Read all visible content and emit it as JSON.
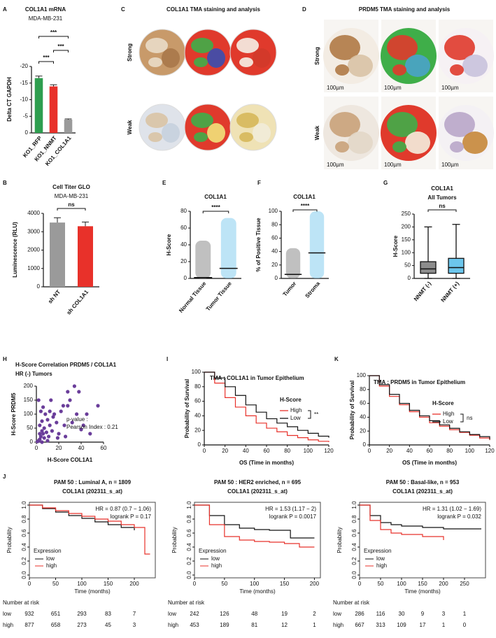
{
  "images": [
    {
      "panel": "C",
      "title": "COL1A1 TMA staining and analysis",
      "rows": [
        "Strong",
        "Weak"
      ]
    },
    {
      "panel": "D",
      "title": "PRDM5 TMA staining and analysis",
      "rows": [
        "Strong",
        "Weak"
      ],
      "scale_label": "100µm"
    }
  ],
  "chart_data": [
    {
      "panel": "A",
      "type": "bar",
      "title": "COL1A1 mRNA",
      "subtitle": "MDA-MB-231",
      "ylabel": "Delta CT GAPDH",
      "categories": [
        "KO1_RFP",
        "KO1_NNMT",
        "KO1_COL1A1"
      ],
      "values": [
        -16.5,
        -14,
        -4
      ],
      "errors": [
        0.6,
        0.5,
        0.2
      ],
      "colors": [
        "#2e9e4f",
        "#e8312a",
        "#9a9a9a"
      ],
      "ylim": [
        0,
        -20
      ],
      "yticks": [
        0,
        -5,
        -10,
        -15,
        -20
      ],
      "annotations": [
        "***",
        "***",
        "***"
      ]
    },
    {
      "panel": "B",
      "type": "bar",
      "title": "Cell Titer GLO",
      "subtitle": "MDA-MB-231",
      "ylabel": "Luminescence (RLU)",
      "categories": [
        "sh NT",
        "sh COL1A1"
      ],
      "values": [
        3500,
        3300
      ],
      "errors": [
        260,
        230
      ],
      "colors": [
        "#9a9a9a",
        "#e8312a"
      ],
      "ylim": [
        0,
        4000
      ],
      "yticks": [
        0,
        1000,
        2000,
        3000,
        4000
      ],
      "annotations": [
        "ns"
      ]
    },
    {
      "panel": "E",
      "type": "strip",
      "title": "COL1A1",
      "ylabel": "H-Score",
      "categories": [
        "Normal Tissue",
        "Tumor Tissue"
      ],
      "values": [
        1,
        12
      ],
      "ranges": [
        [
          0,
          45
        ],
        [
          0,
          72
        ]
      ],
      "colors": [
        "#8c8c8c",
        "#87cdee"
      ],
      "ylim": [
        0,
        80
      ],
      "yticks": [
        0,
        20,
        40,
        60,
        80
      ],
      "annotations": [
        "****"
      ]
    },
    {
      "panel": "F",
      "type": "strip",
      "title": "COL1A1",
      "ylabel": "% of Positive Tissue",
      "categories": [
        "Tumor",
        "Stroma"
      ],
      "values": [
        6,
        38
      ],
      "ranges": [
        [
          0,
          45
        ],
        [
          0,
          100
        ]
      ],
      "colors": [
        "#8c8c8c",
        "#87cdee"
      ],
      "ylim": [
        0,
        100
      ],
      "yticks": [
        0,
        20,
        40,
        60,
        80,
        100
      ],
      "annotations": [
        "****"
      ]
    },
    {
      "panel": "G",
      "type": "box",
      "title": "COL1A1",
      "subtitle": "All Tumors",
      "ylabel": "H-Score",
      "categories": [
        "NNMT (-)",
        "NNMT (+)"
      ],
      "boxes": [
        {
          "min": 0,
          "q1": 20,
          "median": 37,
          "q3": 65,
          "max": 200
        },
        {
          "min": 0,
          "q1": 20,
          "median": 42,
          "q3": 78,
          "max": 210
        }
      ],
      "colors": [
        "#8c8c8c",
        "#6cc6ec"
      ],
      "ylim": [
        0,
        250
      ],
      "yticks": [
        0,
        50,
        100,
        150,
        200,
        250
      ],
      "annotations": [
        "ns"
      ]
    },
    {
      "panel": "H",
      "type": "scatter",
      "title": "H-Score Correlation PRDM5 / COL1A1",
      "subtitle": "HR (-) Tumors",
      "xlabel": "H-Score COL1A1",
      "ylabel": "H-Score PRDM5",
      "color": "#6a3d9a",
      "x": [
        2,
        3,
        4,
        5,
        6,
        3,
        5,
        7,
        8,
        4,
        6,
        2,
        10,
        12,
        9,
        11,
        14,
        15,
        13,
        16,
        18,
        20,
        22,
        24,
        25,
        28,
        28,
        30,
        32,
        34,
        36,
        38,
        40,
        42,
        48,
        55,
        1,
        3,
        7,
        10,
        5,
        12,
        19,
        26,
        45
      ],
      "y": [
        5,
        10,
        20,
        40,
        30,
        60,
        75,
        50,
        100,
        110,
        125,
        150,
        80,
        60,
        35,
        20,
        40,
        90,
        150,
        100,
        70,
        30,
        110,
        130,
        60,
        130,
        180,
        150,
        70,
        200,
        100,
        180,
        45,
        60,
        30,
        130,
        2,
        30,
        15,
        5,
        0,
        110,
        15,
        20,
        100
      ],
      "xlim": [
        0,
        60
      ],
      "xticks": [
        0,
        20,
        40,
        60
      ],
      "ylim": [
        0,
        200
      ],
      "yticks": [
        0,
        50,
        100,
        150,
        200
      ],
      "annotations": [
        "p-value :",
        "Pearson Index : 0.21"
      ]
    },
    {
      "panel": "I",
      "type": "step",
      "title": "TMA : COL1A1 in Tumor Epithelium",
      "xlabel": "OS (Time in months)",
      "ylabel": "Probability of Survival",
      "legend_title": "H-Score",
      "series": [
        {
          "name": "High",
          "color": "#e8312a",
          "x": [
            0,
            10,
            20,
            30,
            40,
            50,
            60,
            70,
            80,
            90,
            100,
            110,
            120
          ],
          "values": [
            100,
            85,
            65,
            52,
            40,
            30,
            23,
            18,
            13,
            10,
            7,
            5,
            4
          ]
        },
        {
          "name": "Low",
          "color": "#111111",
          "x": [
            0,
            10,
            20,
            30,
            40,
            50,
            60,
            70,
            80,
            90,
            100,
            110,
            120
          ],
          "values": [
            100,
            92,
            80,
            68,
            55,
            45,
            36,
            30,
            25,
            20,
            16,
            12,
            10
          ]
        }
      ],
      "xlim": [
        0,
        120
      ],
      "xticks": [
        0,
        20,
        40,
        60,
        80,
        100,
        120
      ],
      "ylim": [
        0,
        100
      ],
      "yticks": [
        0,
        20,
        40,
        60,
        80,
        100
      ],
      "annotations": [
        "**"
      ]
    },
    {
      "panel": "K",
      "type": "step",
      "title": "TMA : PRDM5 in Tumor Epithelium",
      "xlabel": "OS (Time in months)",
      "ylabel": "Probability of Survival",
      "legend_title": "H-Score",
      "series": [
        {
          "name": "High",
          "color": "#e8312a",
          "x": [
            0,
            10,
            20,
            30,
            40,
            50,
            60,
            70,
            80,
            90,
            100,
            110,
            120
          ],
          "values": [
            100,
            85,
            70,
            58,
            48,
            40,
            32,
            27,
            22,
            18,
            14,
            10,
            7
          ]
        },
        {
          "name": "Low",
          "color": "#111111",
          "x": [
            0,
            10,
            20,
            30,
            40,
            50,
            60,
            70,
            80,
            90,
            100,
            110,
            120
          ],
          "values": [
            100,
            87,
            73,
            60,
            50,
            42,
            35,
            29,
            24,
            19,
            15,
            12,
            8
          ]
        }
      ],
      "xlim": [
        0,
        120
      ],
      "xticks": [
        0,
        20,
        40,
        60,
        80,
        100,
        120
      ],
      "ylim": [
        0,
        100
      ],
      "yticks": [
        0,
        20,
        40,
        60,
        80,
        100
      ],
      "annotations": [
        "ns"
      ]
    },
    {
      "panel": "J",
      "type": "step",
      "box": true,
      "title": "PAM 50 : Luminal A, n = 1809",
      "subtitle": "COL1A1 (202311_s_at)",
      "xlabel": "Time (months)",
      "ylabel": "Probability",
      "legend_title": "Expression",
      "series": [
        {
          "name": "low",
          "color": "#111111",
          "x": [
            0,
            25,
            50,
            75,
            100,
            125,
            150,
            175,
            200
          ],
          "values": [
            1,
            0.95,
            0.9,
            0.85,
            0.81,
            0.76,
            0.72,
            0.68,
            0.64
          ]
        },
        {
          "name": "high",
          "color": "#e8312a",
          "x": [
            0,
            25,
            50,
            75,
            100,
            125,
            150,
            175,
            200,
            220,
            230
          ],
          "values": [
            1,
            0.96,
            0.92,
            0.88,
            0.84,
            0.8,
            0.77,
            0.72,
            0.68,
            0.3,
            0.3
          ]
        }
      ],
      "xlim": [
        0,
        240
      ],
      "xticks": [
        0,
        50,
        100,
        150,
        200
      ],
      "ylim": [
        0,
        1
      ],
      "yticks": [
        {
          "value": 0,
          "label": "0.0"
        },
        0.2,
        0.4,
        0.6,
        0.8,
        {
          "value": 1,
          "label": "1.0"
        }
      ],
      "annotations": [
        "HR = 0.87 (0.7 − 1.06)",
        "logrank P = 0.17"
      ],
      "risk_table": {
        "title": "Number at risk",
        "rows": [
          {
            "name": "low",
            "values": [
              932,
              651,
              293,
              83,
              7
            ]
          },
          {
            "name": "high",
            "values": [
              877,
              658,
              273,
              45,
              3
            ]
          }
        ]
      }
    },
    {
      "type": "step",
      "box": true,
      "title": "PAM 50 : HER2 enriched, n = 695",
      "subtitle": "COL1A1 (202311_s_at)",
      "xlabel": "Time (months)",
      "ylabel": "Probability",
      "legend_title": "Expression",
      "series": [
        {
          "name": "low",
          "color": "#111111",
          "x": [
            0,
            25,
            50,
            75,
            100,
            125,
            150,
            160,
            200
          ],
          "values": [
            1,
            0.85,
            0.72,
            0.67,
            0.65,
            0.64,
            0.64,
            0.53,
            0.53
          ]
        },
        {
          "name": "high",
          "color": "#e8312a",
          "x": [
            0,
            25,
            50,
            75,
            100,
            125,
            150,
            175,
            200
          ],
          "values": [
            1,
            0.72,
            0.55,
            0.5,
            0.48,
            0.47,
            0.45,
            0.4,
            0.4
          ]
        }
      ],
      "xlim": [
        0,
        210
      ],
      "xticks": [
        0,
        50,
        100,
        150,
        200
      ],
      "ylim": [
        0,
        1
      ],
      "yticks": [
        {
          "value": 0,
          "label": "0.0"
        },
        0.2,
        0.4,
        0.6,
        0.8,
        {
          "value": 1,
          "label": "1.0"
        }
      ],
      "annotations": [
        "HR = 1.53 (1.17 − 2)",
        "logrank P = 0.0017"
      ],
      "risk_table": {
        "title": "Number at risk",
        "rows": [
          {
            "name": "low",
            "values": [
              242,
              126,
              48,
              19,
              2
            ]
          },
          {
            "name": "high",
            "values": [
              453,
              189,
              81,
              12,
              1
            ]
          }
        ]
      }
    },
    {
      "type": "step",
      "box": true,
      "title": "PAM 50 : Basal-like, n = 953",
      "subtitle": "COL1A1 (202311_s_at)",
      "xlabel": "Time (months)",
      "ylabel": "Probability",
      "legend_title": "Expression",
      "series": [
        {
          "name": "low",
          "color": "#111111",
          "x": [
            0,
            25,
            50,
            75,
            100,
            150,
            200,
            250,
            290
          ],
          "values": [
            1,
            0.85,
            0.75,
            0.72,
            0.7,
            0.68,
            0.66,
            0.66,
            0.66
          ]
        },
        {
          "name": "high",
          "color": "#e8312a",
          "x": [
            0,
            25,
            50,
            75,
            100,
            150,
            200
          ],
          "values": [
            1,
            0.78,
            0.65,
            0.6,
            0.58,
            0.55,
            0.5
          ]
        }
      ],
      "xlim": [
        0,
        300
      ],
      "xticks": [
        0,
        50,
        100,
        150,
        200,
        250
      ],
      "ylim": [
        0,
        1
      ],
      "yticks": [
        {
          "value": 0,
          "label": "0.0"
        },
        0.2,
        0.4,
        0.6,
        0.8,
        {
          "value": 1,
          "label": "1.0"
        }
      ],
      "annotations": [
        "HR = 1.31 (1.02 − 1.69)",
        "logrank P = 0.032"
      ],
      "risk_table": {
        "title": "Number at risk",
        "rows": [
          {
            "name": "low",
            "values": [
              286,
              116,
              30,
              9,
              3,
              1
            ]
          },
          {
            "name": "high",
            "values": [
              667,
              313,
              109,
              17,
              1,
              0
            ]
          }
        ]
      }
    }
  ]
}
